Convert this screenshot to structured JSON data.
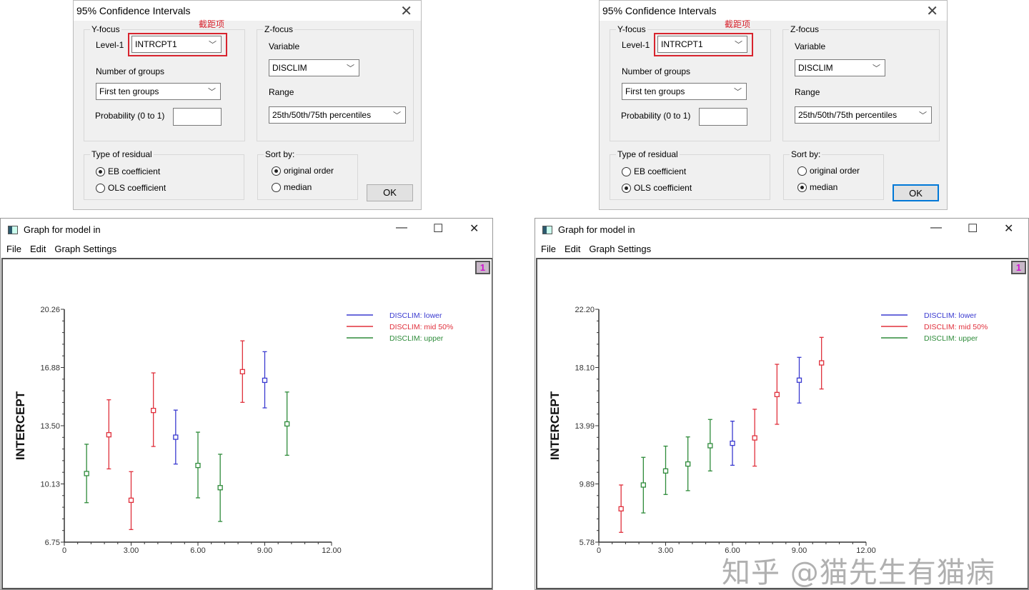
{
  "dialogs": [
    {
      "title": "95% Confidence Intervals",
      "annotation": "截距项",
      "y_focus": {
        "label": "Y-focus",
        "level1_label": "Level-1",
        "level1_value": "INTRCPT1",
        "groups_label": "Number of groups",
        "groups_value": "First ten groups",
        "probability_label": "Probability (0 to 1)",
        "probability_value": ""
      },
      "z_focus": {
        "label": "Z-focus",
        "variable_label": "Variable",
        "variable_value": "DISCLIM",
        "range_label": "Range",
        "range_value": "25th/50th/75th percentiles"
      },
      "residual": {
        "label": "Type of residual",
        "options": [
          "EB coefficient",
          "OLS coefficient"
        ],
        "selected": 0
      },
      "sort": {
        "label": "Sort by:",
        "options": [
          "original order",
          "median"
        ],
        "selected": 0
      },
      "ok_label": "OK"
    },
    {
      "title": "95% Confidence Intervals",
      "annotation": "截距项",
      "y_focus": {
        "label": "Y-focus",
        "level1_label": "Level-1",
        "level1_value": "INTRCPT1",
        "groups_label": "Number of groups",
        "groups_value": "First ten groups",
        "probability_label": "Probability (0 to 1)",
        "probability_value": ""
      },
      "z_focus": {
        "label": "Z-focus",
        "variable_label": "Variable",
        "variable_value": "DISCLIM",
        "range_label": "Range",
        "range_value": "25th/50th/75th percentiles"
      },
      "residual": {
        "label": "Type of residual",
        "options": [
          "EB coefficient",
          "OLS coefficient"
        ],
        "selected": 1
      },
      "sort": {
        "label": "Sort by:",
        "options": [
          "original order",
          "median"
        ],
        "selected": 1
      },
      "ok_label": "OK"
    }
  ],
  "graph_windows": [
    {
      "title": "Graph for model in",
      "menu": [
        "File",
        "Edit",
        "Graph Settings"
      ],
      "badge": "1"
    },
    {
      "title": "Graph for model in",
      "menu": [
        "File",
        "Edit",
        "Graph Settings"
      ],
      "badge": "1"
    }
  ],
  "watermark": "知乎 @猫先生有猫病",
  "colors": {
    "lower": "#3a3ad0",
    "mid": "#e0303c",
    "upper": "#2e8b3a"
  },
  "chart_data": [
    {
      "type": "scatter",
      "ylabel": "INTERCEPT",
      "xlim": [
        0,
        12
      ],
      "ylim": [
        6.75,
        20.26
      ],
      "xticks": [
        "0",
        "3.00",
        "6.00",
        "9.00",
        "12.00"
      ],
      "yticks": [
        "6.75",
        "10.13",
        "13.50",
        "16.88",
        "20.26"
      ],
      "legend": [
        "DISCLIM: lower",
        "DISCLIM: mid 50%",
        "DISCLIM: upper"
      ],
      "legend_position": "top-right",
      "points": [
        {
          "x": 1,
          "y": 10.73,
          "lo": 9.04,
          "hi": 12.43,
          "group": "upper"
        },
        {
          "x": 2,
          "y": 12.98,
          "lo": 11.0,
          "hi": 15.01,
          "group": "mid"
        },
        {
          "x": 3,
          "y": 9.18,
          "lo": 7.48,
          "hi": 10.84,
          "group": "mid"
        },
        {
          "x": 4,
          "y": 14.39,
          "lo": 12.3,
          "hi": 16.57,
          "group": "mid"
        },
        {
          "x": 5,
          "y": 12.84,
          "lo": 11.28,
          "hi": 14.41,
          "group": "lower"
        },
        {
          "x": 6,
          "y": 11.2,
          "lo": 9.32,
          "hi": 13.13,
          "group": "upper"
        },
        {
          "x": 7,
          "y": 9.91,
          "lo": 7.95,
          "hi": 11.85,
          "group": "upper"
        },
        {
          "x": 8,
          "y": 16.64,
          "lo": 14.86,
          "hi": 18.43,
          "group": "mid"
        },
        {
          "x": 9,
          "y": 16.14,
          "lo": 14.54,
          "hi": 17.8,
          "group": "lower"
        },
        {
          "x": 10,
          "y": 13.61,
          "lo": 11.79,
          "hi": 15.46,
          "group": "upper"
        }
      ]
    },
    {
      "type": "scatter",
      "ylabel": "INTERCEPT",
      "xlim": [
        0,
        12
      ],
      "ylim": [
        5.78,
        22.2
      ],
      "xticks": [
        "0",
        "3.00",
        "6.00",
        "9.00",
        "12.00"
      ],
      "yticks": [
        "5.78",
        "9.89",
        "13.99",
        "18.10",
        "22.20"
      ],
      "legend": [
        "DISCLIM: lower",
        "DISCLIM: mid 50%",
        "DISCLIM: upper"
      ],
      "legend_position": "top-right",
      "points": [
        {
          "x": 1,
          "y": 8.13,
          "lo": 6.47,
          "hi": 9.81,
          "group": "mid"
        },
        {
          "x": 2,
          "y": 9.81,
          "lo": 7.84,
          "hi": 11.76,
          "group": "upper"
        },
        {
          "x": 3,
          "y": 10.8,
          "lo": 9.14,
          "hi": 12.55,
          "group": "upper"
        },
        {
          "x": 4,
          "y": 11.29,
          "lo": 9.41,
          "hi": 13.2,
          "group": "upper"
        },
        {
          "x": 5,
          "y": 12.58,
          "lo": 10.8,
          "hi": 14.43,
          "group": "upper"
        },
        {
          "x": 6,
          "y": 12.75,
          "lo": 11.2,
          "hi": 14.31,
          "group": "lower"
        },
        {
          "x": 7,
          "y": 13.13,
          "lo": 11.14,
          "hi": 15.15,
          "group": "mid"
        },
        {
          "x": 8,
          "y": 16.19,
          "lo": 14.09,
          "hi": 18.32,
          "group": "mid"
        },
        {
          "x": 9,
          "y": 17.2,
          "lo": 15.59,
          "hi": 18.81,
          "group": "lower"
        },
        {
          "x": 10,
          "y": 18.42,
          "lo": 16.58,
          "hi": 20.22,
          "group": "mid"
        }
      ]
    }
  ]
}
